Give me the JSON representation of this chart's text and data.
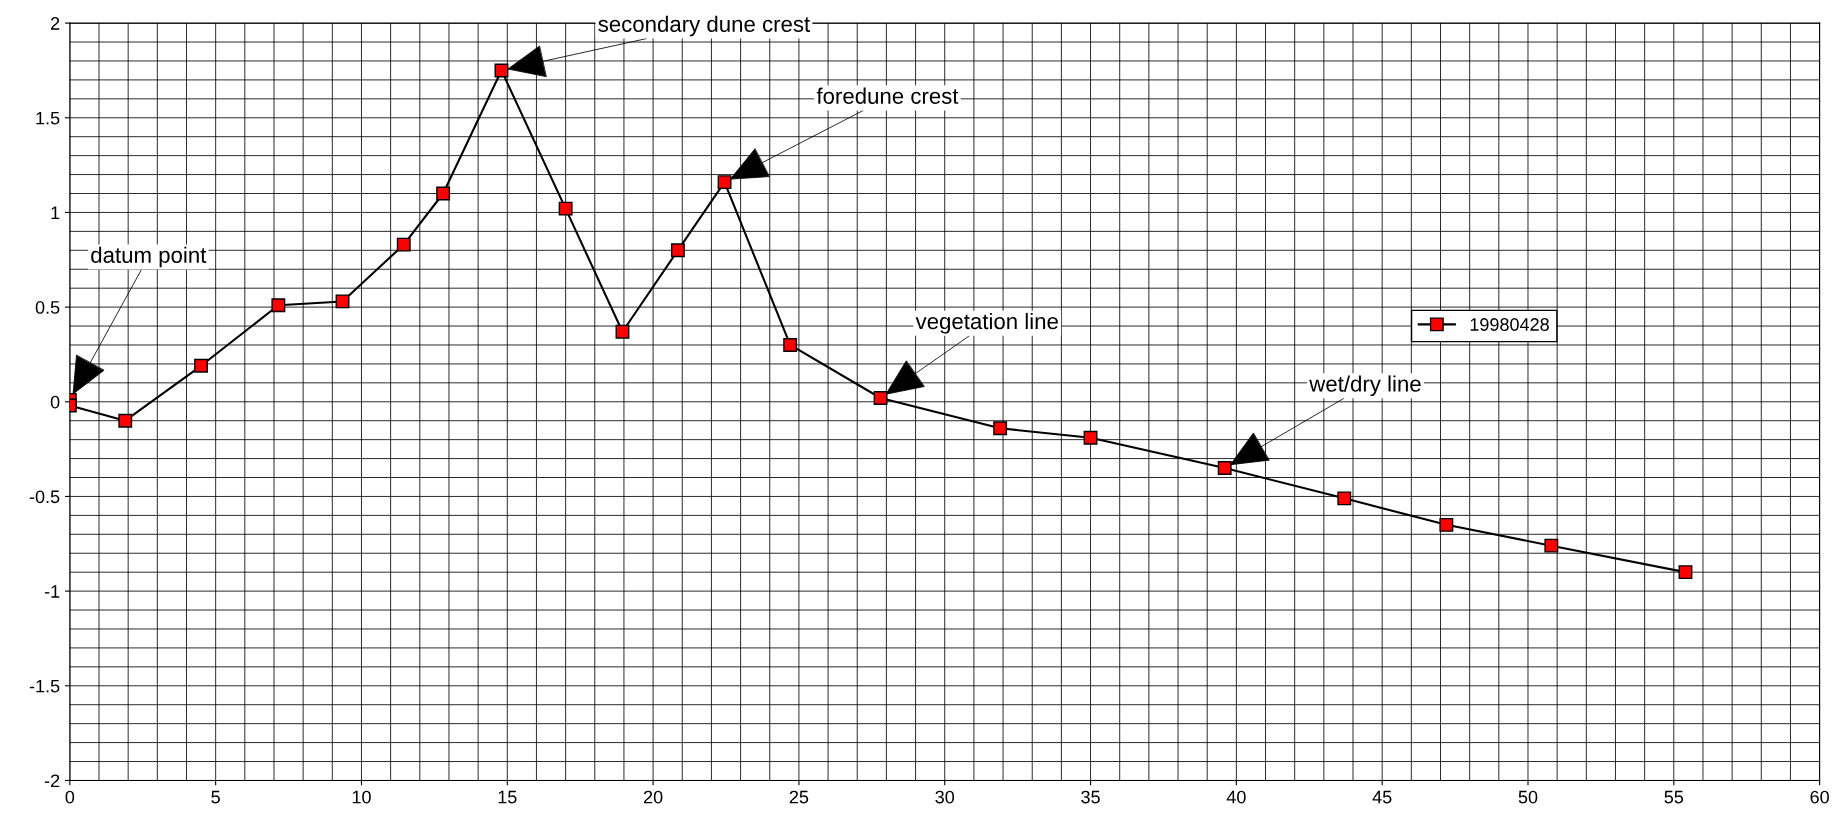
{
  "chart_data": {
    "type": "line",
    "marker": "square",
    "line_style": "solid",
    "grid": true,
    "legend": "right",
    "xlim": [
      0,
      60
    ],
    "xticks": [
      0,
      5,
      10,
      15,
      20,
      25,
      30,
      35,
      40,
      45,
      50,
      55,
      60
    ],
    "ylim": [
      -2,
      2
    ],
    "yticks": [
      -2,
      -1.5,
      -1,
      -0.5,
      0,
      0.5,
      1,
      1.5,
      2
    ],
    "series": [
      {
        "name": "19980428",
        "color": "#ff0000",
        "x": [
          0,
          0,
          1.9,
          4.5,
          7.15,
          9.35,
          11.45,
          12.8,
          14.8,
          17.0,
          18.95,
          20.85,
          22.45,
          24.7,
          27.8,
          31.9,
          35.0,
          39.6,
          43.7,
          47.2,
          50.8,
          55.4
        ],
        "values": [
          0.01,
          -0.02,
          -0.1,
          0.19,
          0.51,
          0.53,
          0.83,
          1.1,
          1.75,
          1.02,
          0.37,
          0.8,
          1.16,
          0.3,
          0.02,
          -0.14,
          -0.19,
          -0.35,
          -0.51,
          -0.65,
          -0.76,
          -0.9
        ]
      }
    ],
    "annotations": [
      {
        "text": "datum point",
        "x": 0,
        "y": 0.01
      },
      {
        "text": "secondary dune crest",
        "x": 14.8,
        "y": 1.75
      },
      {
        "text": "foredune crest",
        "x": 22.45,
        "y": 1.16
      },
      {
        "text": "vegetation line",
        "x": 27.8,
        "y": 0.02
      },
      {
        "text": "wet/dry line",
        "x": 39.6,
        "y": -0.35
      }
    ]
  }
}
